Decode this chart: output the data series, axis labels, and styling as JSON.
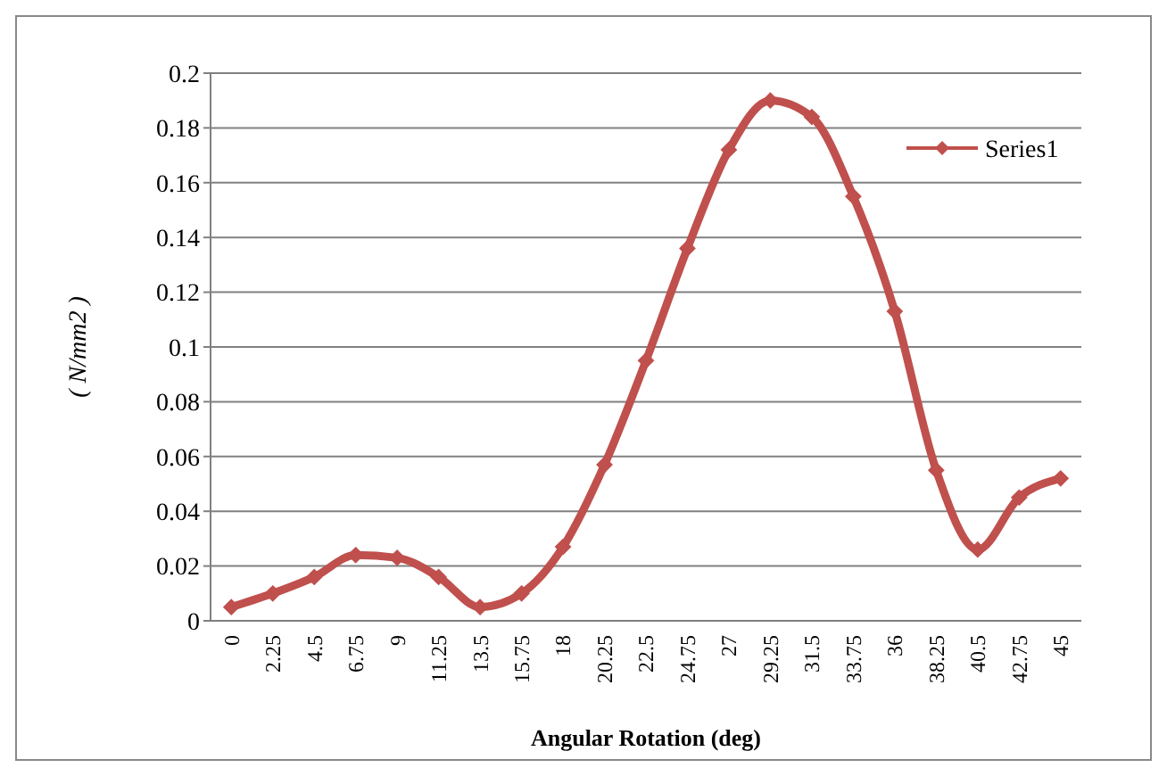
{
  "chart_data": {
    "type": "line",
    "xlabel": "Angular Rotation (deg)",
    "ylabel": "( N/mm2 )",
    "categories": [
      "0",
      "2.25",
      "4.5",
      "6.75",
      "9",
      "11.25",
      "13.5",
      "15.75",
      "18",
      "20.25",
      "22.5",
      "24.75",
      "27",
      "29.25",
      "31.5",
      "33.75",
      "36",
      "38.25",
      "40.5",
      "42.75",
      "45"
    ],
    "series": [
      {
        "name": "Series1",
        "color": "#c0504d",
        "values": [
          0.005,
          0.01,
          0.016,
          0.024,
          0.023,
          0.016,
          0.005,
          0.01,
          0.027,
          0.057,
          0.095,
          0.136,
          0.172,
          0.19,
          0.184,
          0.155,
          0.113,
          0.055,
          0.026,
          0.045,
          0.052
        ]
      }
    ],
    "ylim": [
      0,
      0.2
    ],
    "yticks": [
      0,
      0.02,
      0.04,
      0.06,
      0.08,
      0.1,
      0.12,
      0.14,
      0.16,
      0.18,
      0.2
    ],
    "grid": "y",
    "legend": "right",
    "marker": "diamond",
    "line_style": "solid"
  }
}
